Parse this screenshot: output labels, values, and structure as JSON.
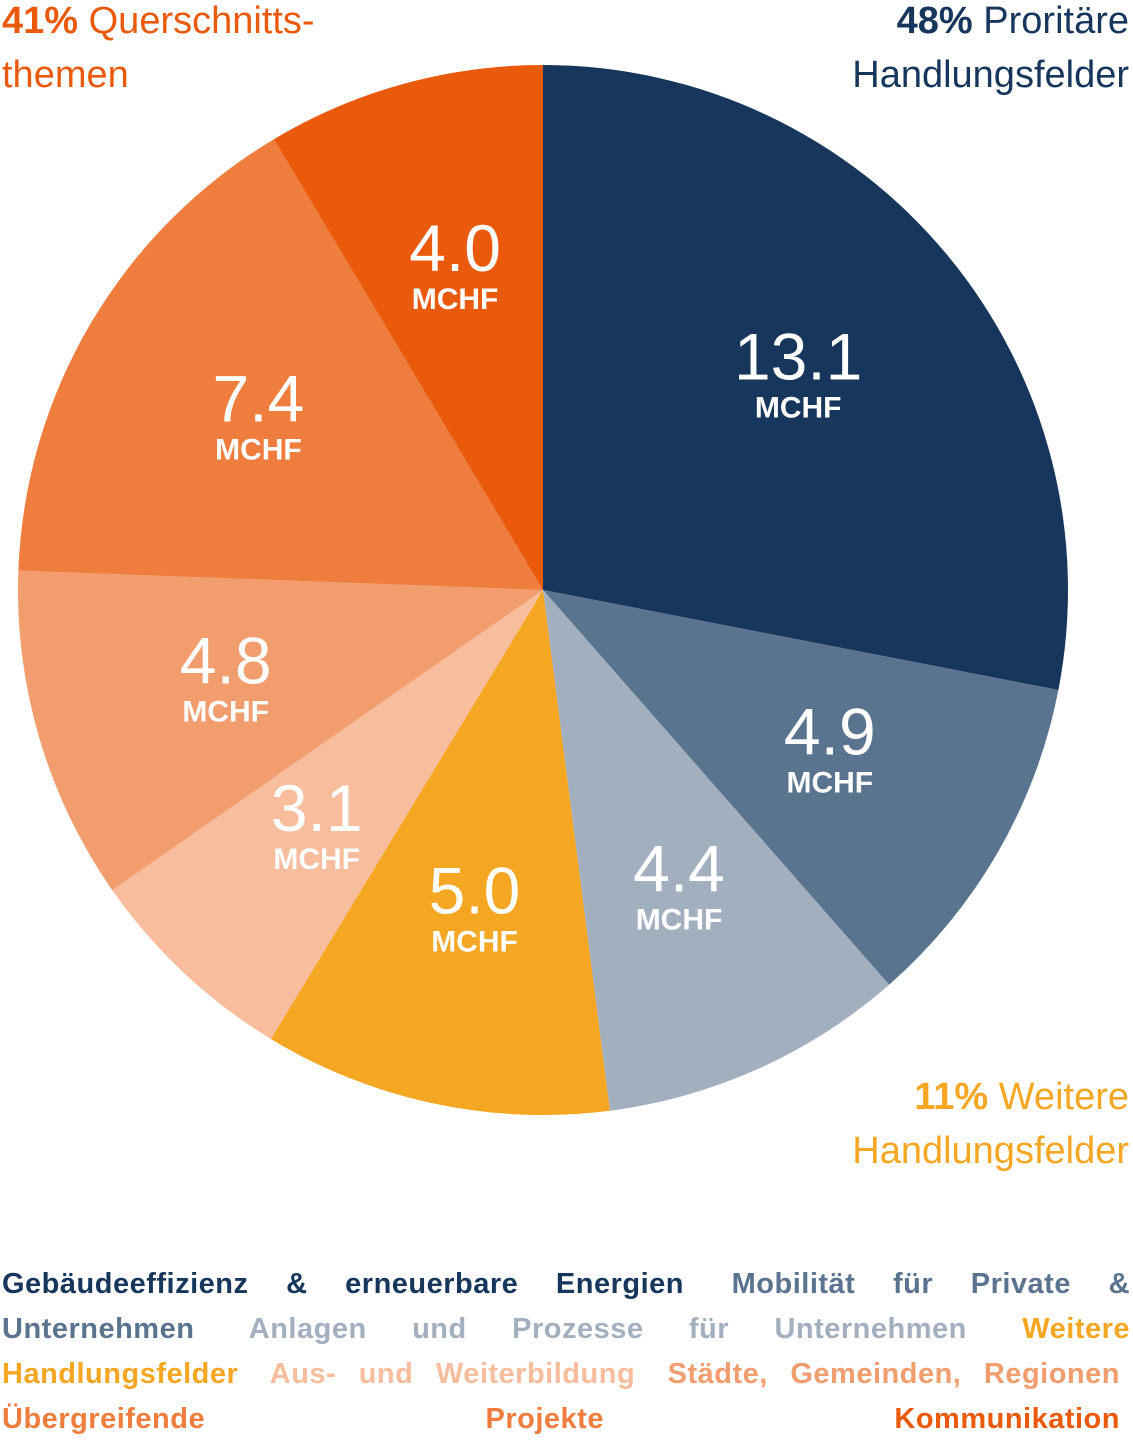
{
  "chart_data": {
    "type": "pie",
    "unit_label": "MCHF",
    "slices": [
      {
        "label": "Gebäudeeffizienz & erneuerbare Energien",
        "value": 13.1,
        "value_text": "13.1",
        "color": "#16365c",
        "label_color": "#16365c"
      },
      {
        "label": "Mobilität für Private & Unternehmen",
        "value": 4.9,
        "value_text": "4.9",
        "color": "#5a738f",
        "label_color": "#5a738f"
      },
      {
        "label": "Anlagen und Prozesse für Unternehmen",
        "value": 4.4,
        "value_text": "4.4",
        "color": "#a2afbe",
        "label_color": "#a2afbe"
      },
      {
        "label": "Weitere Handlungsfelder",
        "value": 5.0,
        "value_text": "5.0",
        "color": "#f5a623",
        "label_color": "#f5a623"
      },
      {
        "label": "Aus- und Weiterbildung",
        "value": 3.1,
        "value_text": "3.1",
        "color": "#f7bd9c",
        "label_color": "#f7bd9c"
      },
      {
        "label": "Städte, Gemeinden, Regionen",
        "value": 4.8,
        "value_text": "4.8",
        "color": "#f19d6e",
        "label_color": "#f19d6e"
      },
      {
        "label": "Übergreifende Projekte",
        "value": 7.4,
        "value_text": "7.4",
        "color": "#ee7d3e",
        "label_color": "#ee7d3e"
      },
      {
        "label": "Kommunikation",
        "value": 4.0,
        "value_text": "4.0",
        "color": "#ea5a0c",
        "label_color": "#ea5a0c"
      }
    ],
    "groups": [
      {
        "percent": "41%",
        "text_line1": "Querschnitts-",
        "text_line2": "themen",
        "color": "#ea5a0c",
        "position": "top-left"
      },
      {
        "percent": "48%",
        "text_line1": "Proritäre",
        "text_line2": "Handlungsfelder",
        "color": "#16365c",
        "position": "top-right"
      },
      {
        "percent": "11%",
        "text_line1": "Weitere",
        "text_line2": "Handlungsfelder",
        "color": "#f5a623",
        "position": "bottom-right"
      }
    ],
    "legend_position": "bottom"
  }
}
